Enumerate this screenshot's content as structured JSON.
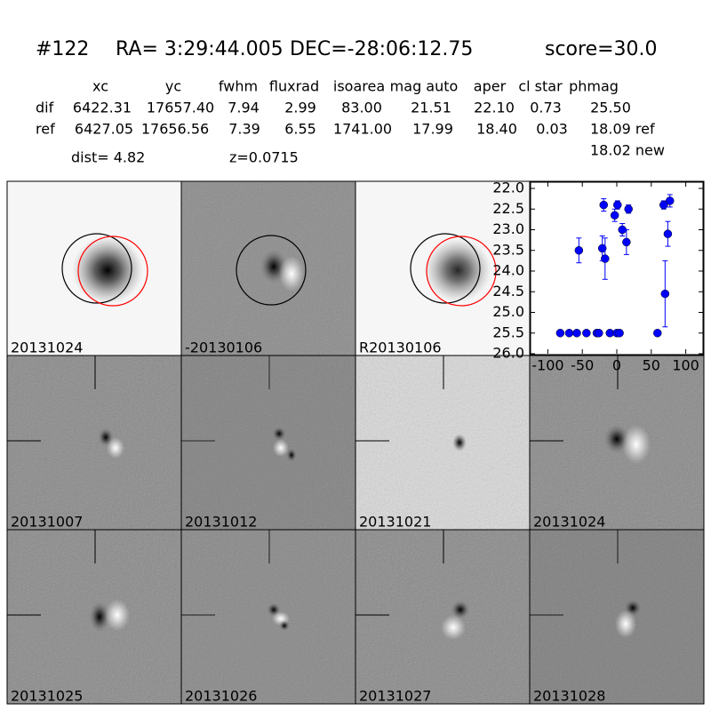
{
  "header": {
    "id": "#122",
    "ra": "RA= 3:29:44.005",
    "dec": "DEC=-28:06:12.75",
    "score": "score=30.0"
  },
  "table": {
    "columns": [
      "xc",
      "yc",
      "fwhm",
      "fluxrad",
      "isoarea",
      "mag auto",
      "aper",
      "cl star",
      "phmag"
    ],
    "rows": [
      [
        "dif",
        "6422.31",
        "17657.40",
        "7.94",
        "2.99",
        "83.00",
        "21.51",
        "22.10",
        "0.73",
        "25.50"
      ],
      [
        "ref",
        "6427.05",
        "17656.56",
        "7.39",
        "6.55",
        "1741.00",
        "17.99",
        "18.40",
        "0.03",
        "18.09 ref"
      ]
    ],
    "extra": "18.02 new",
    "dist": "dist=  4.82",
    "z": "z=0.0715"
  },
  "panels": [
    {
      "label": "20131024"
    },
    {
      "label": "-20130106"
    },
    {
      "label": "R20130106"
    },
    {
      "label": "20131007"
    },
    {
      "label": "20131012"
    },
    {
      "label": "20131021"
    },
    {
      "label": "20131024"
    },
    {
      "label": "20131025"
    },
    {
      "label": "20131026"
    },
    {
      "label": "20131027"
    },
    {
      "label": "20131028"
    }
  ],
  "chart_data": {
    "type": "scatter",
    "xlim": [
      -125,
      125
    ],
    "ylim": [
      26,
      22
    ],
    "xticks": [
      -100,
      -50,
      0,
      50,
      100
    ],
    "yticks": [
      {
        "value": 22,
        "label": "22.0"
      },
      22.5,
      {
        "value": 23,
        "label": "23.0"
      },
      23.5,
      {
        "value": 24,
        "label": "24.0"
      },
      24.5,
      {
        "value": 25,
        "label": "25.0"
      },
      25.5,
      {
        "value": 26,
        "label": "26.0"
      }
    ],
    "series": [
      {
        "color": "#0000ff",
        "x": [
          -55,
          -19,
          -21,
          -17,
          -3,
          1,
          8,
          14,
          17,
          68,
          70,
          74,
          77
        ],
        "values": [
          23.5,
          22.4,
          23.45,
          23.7,
          22.65,
          22.4,
          23.0,
          23.3,
          22.5,
          22.4,
          24.55,
          23.1,
          22.3
        ],
        "errors": [
          0.3,
          0.15,
          0.3,
          0.5,
          0.15,
          0.1,
          0.15,
          0.3,
          0.1,
          0.1,
          0.8,
          0.3,
          0.15
        ]
      },
      {
        "color": "#0000ff",
        "x": [
          -82,
          -69,
          -58,
          -44,
          -29,
          -26,
          -10,
          0,
          4,
          59
        ],
        "values": [
          25.5,
          25.5,
          25.5,
          25.5,
          25.5,
          25.5,
          25.5,
          25.5,
          25.5,
          25.5
        ]
      }
    ]
  }
}
